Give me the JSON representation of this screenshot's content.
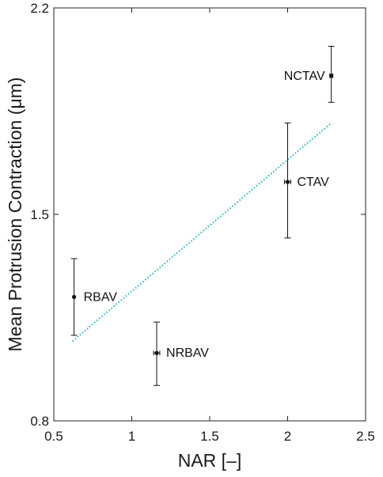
{
  "chart_data": {
    "type": "scatter",
    "title": "",
    "xlabel": "NAR [–]",
    "ylabel": "Mean Protrusion Contraction (μm)",
    "xlim": [
      0.5,
      2.5
    ],
    "ylim": [
      0.8,
      2.2
    ],
    "xticks": [
      "0.5",
      "1",
      "1.5",
      "2",
      "2.5"
    ],
    "yticks": [
      "0.8",
      "1.5",
      "2.2"
    ],
    "grid": false,
    "legend": "none",
    "points": [
      {
        "label": "RBAV",
        "x": 0.63,
        "y": 1.22,
        "y_low": 1.09,
        "y_high": 1.35,
        "x_err": 0.0
      },
      {
        "label": "NRBAV",
        "x": 1.16,
        "y": 1.03,
        "y_low": 0.92,
        "y_high": 1.135,
        "x_err": 0.02
      },
      {
        "label": "CTAV",
        "x": 2.0,
        "y": 1.61,
        "y_low": 1.42,
        "y_high": 1.81,
        "x_err": 0.02
      },
      {
        "label": "NCTAV",
        "x": 2.28,
        "y": 1.97,
        "y_low": 1.88,
        "y_high": 2.07,
        "x_err": 0.01
      }
    ],
    "fit_line": {
      "x": [
        0.62,
        2.28
      ],
      "y": [
        1.07,
        1.81
      ]
    },
    "colors": {
      "points": "#111111",
      "fit": "#1bb3c0",
      "axes": "#222222"
    }
  }
}
